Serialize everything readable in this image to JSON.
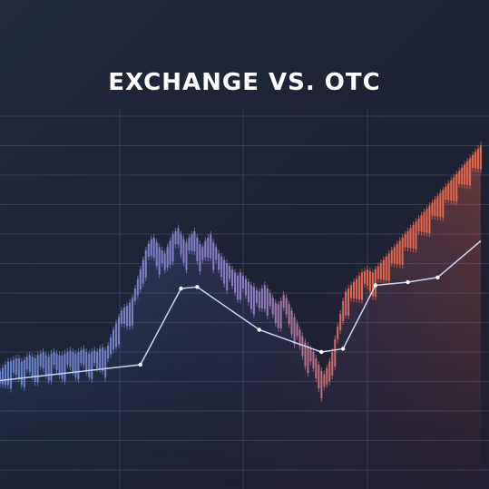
{
  "title": "EXCHANGE VS. OTC",
  "colors": {
    "background": "#1c2233",
    "grid": "#4a536b",
    "blue": "#6b8ad6",
    "purple": "#9a82c8",
    "orange": "#ee6a4a",
    "line": "#c8d4f4"
  },
  "chart_data": {
    "type": "line",
    "title": "EXCHANGE VS. OTC",
    "xlabel": "",
    "ylabel": "",
    "grid": true,
    "legend": "none",
    "series": [
      {
        "kind": "bars",
        "x": [
          0,
          1,
          2,
          3,
          4,
          5,
          6,
          7,
          8,
          9,
          10,
          11,
          12,
          13,
          14,
          15,
          16,
          17,
          18,
          19,
          20,
          21,
          22,
          23,
          24,
          25,
          26,
          27,
          28,
          29,
          30,
          31,
          32,
          33,
          34,
          35,
          36,
          37,
          38,
          39,
          40,
          41,
          42,
          43,
          44,
          45,
          46,
          47,
          48,
          49,
          50,
          51,
          52,
          53,
          54,
          55,
          56,
          57,
          58,
          59,
          60,
          61,
          62,
          63,
          64,
          65,
          66,
          67,
          68,
          69,
          70,
          71,
          72,
          73,
          74,
          75,
          76,
          77,
          78,
          79,
          80,
          81,
          82,
          83,
          84,
          85,
          86,
          87,
          88,
          89,
          90,
          91,
          92,
          93,
          94,
          95,
          96,
          97,
          98,
          99,
          100,
          101,
          102,
          103,
          104,
          105,
          106,
          107,
          108,
          109,
          110,
          111,
          112,
          113,
          114,
          115,
          116,
          117,
          118,
          119,
          120,
          121,
          122,
          123,
          124,
          125,
          126,
          127,
          128,
          129,
          130,
          131,
          132,
          133,
          134,
          135,
          136,
          137,
          138,
          139,
          140,
          141,
          142,
          143,
          144,
          145,
          146,
          147,
          148,
          149,
          150,
          151,
          152,
          153,
          154,
          155,
          156,
          157,
          158,
          159,
          160,
          161,
          162,
          163,
          164,
          165,
          166,
          167,
          168,
          169,
          170,
          171,
          172,
          173,
          174,
          175,
          176,
          177,
          178
        ],
        "values": [
          12,
          14,
          16,
          18,
          18,
          19,
          20,
          20,
          18,
          19,
          21,
          22,
          21,
          20,
          22,
          23,
          24,
          22,
          21,
          23,
          24,
          23,
          22,
          22,
          23,
          24,
          25,
          24,
          23,
          24,
          25,
          26,
          24,
          23,
          24,
          25,
          24,
          26,
          27,
          25,
          28,
          33,
          38,
          42,
          46,
          50,
          52,
          53,
          55,
          58,
          64,
          70,
          76,
          82,
          88,
          92,
          95,
          96,
          93,
          90,
          88,
          86,
          90,
          94,
          98,
          100,
          102,
          98,
          95,
          93,
          96,
          98,
          100,
          96,
          92,
          90,
          94,
          96,
          98,
          93,
          90,
          86,
          84,
          82,
          80,
          78,
          76,
          74,
          72,
          74,
          72,
          70,
          68,
          66,
          65,
          63,
          62,
          64,
          66,
          64,
          61,
          58,
          55,
          54,
          56,
          60,
          58,
          54,
          50,
          46,
          42,
          38,
          34,
          30,
          28,
          26,
          24,
          20,
          16,
          12,
          10,
          14,
          18,
          24,
          32,
          40,
          48,
          56,
          62,
          64,
          66,
          68,
          70,
          72,
          74,
          75,
          76,
          75,
          74,
          76,
          78,
          80,
          82,
          84,
          86,
          88,
          90,
          92,
          94,
          96,
          98,
          100,
          102,
          104,
          106,
          108,
          110,
          112,
          114,
          116,
          118,
          120,
          122,
          124,
          126,
          128,
          130,
          132,
          134,
          136,
          138,
          140,
          142,
          144,
          146,
          148,
          150,
          152,
          154
        ]
      },
      {
        "kind": "line",
        "x": [
          0,
          52,
          67,
          73,
          96,
          119,
          127,
          139,
          151,
          162,
          178
        ],
        "values": [
          6,
          16,
          64,
          65,
          38,
          24,
          26,
          66,
          68,
          71,
          94
        ]
      }
    ],
    "ylim": [
      0,
      160
    ]
  }
}
